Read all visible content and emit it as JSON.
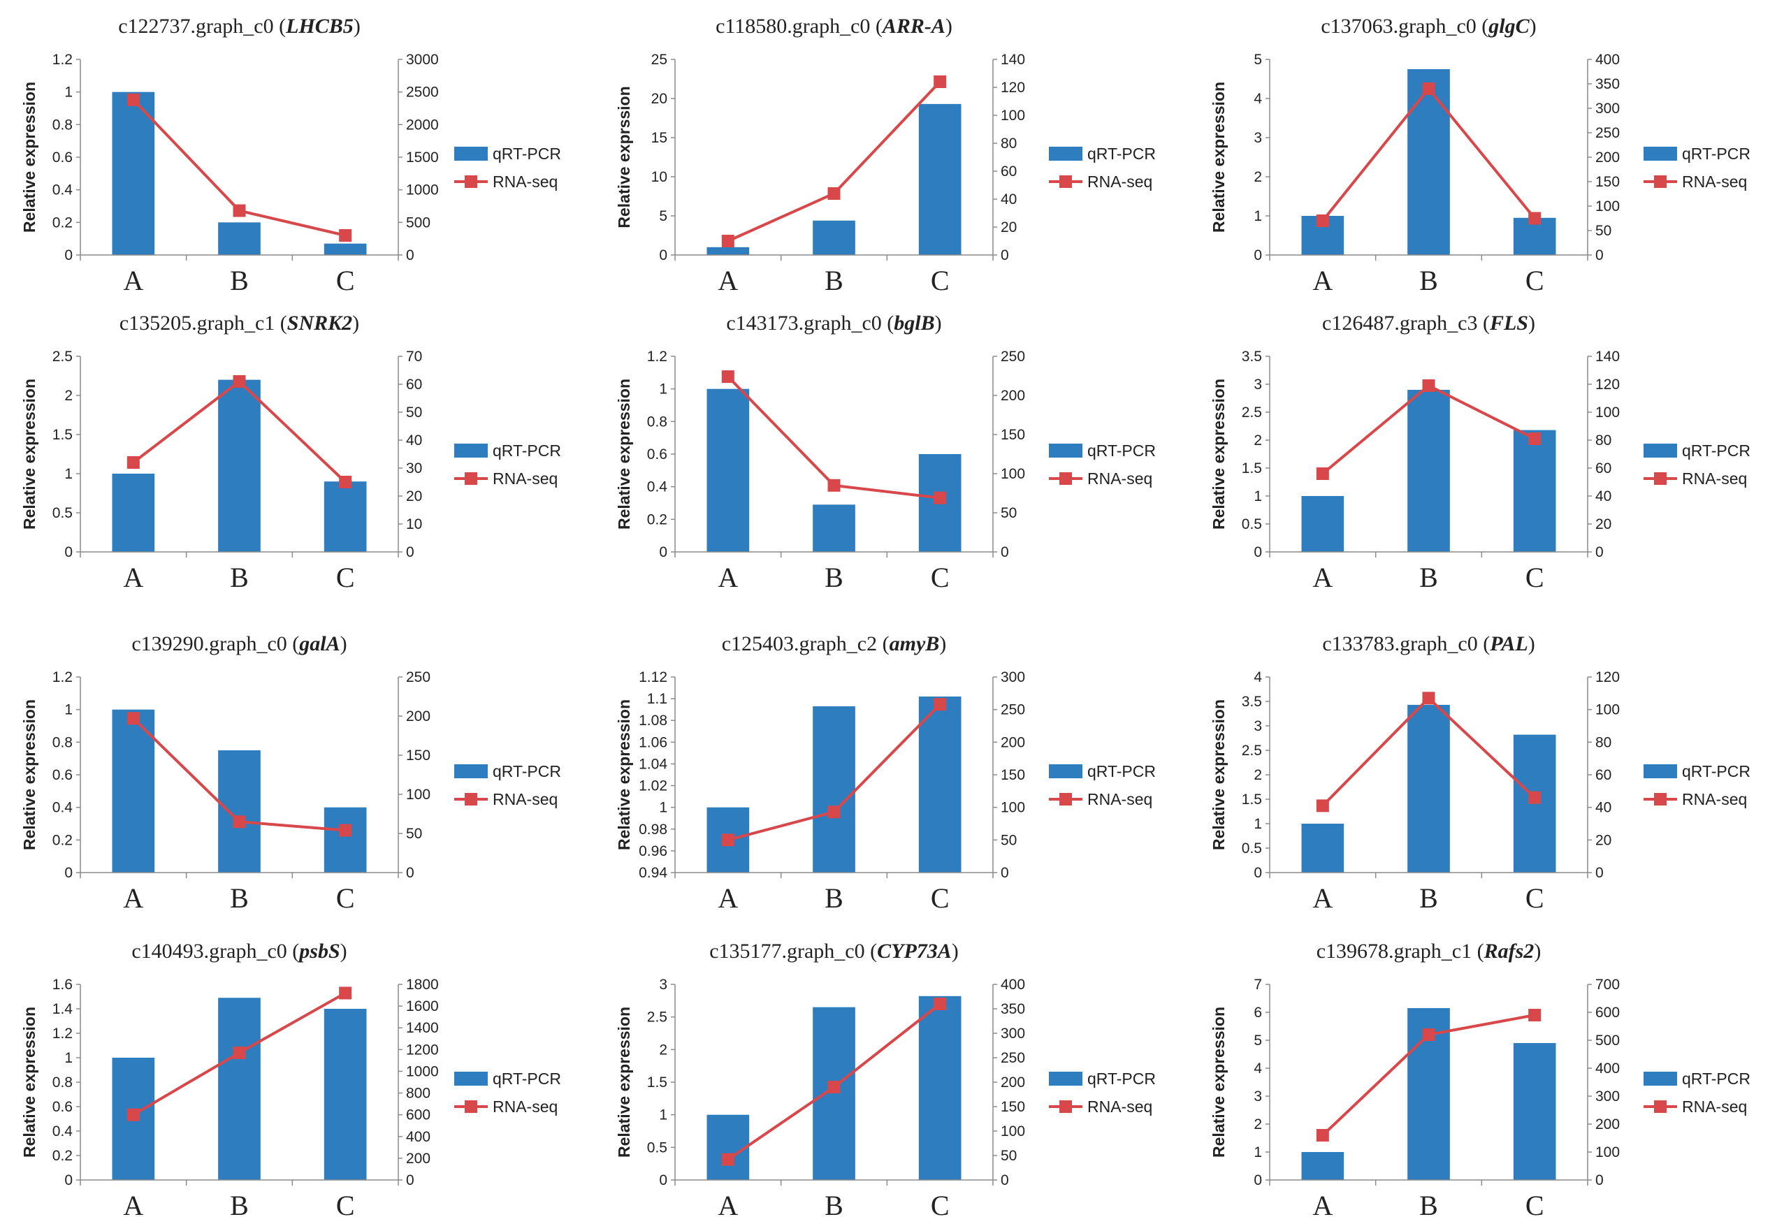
{
  "colors": {
    "bar": "#2e7ebf",
    "line": "#d8474a",
    "axis": "#8a8a8a"
  },
  "chart_data": [
    {
      "type": "bar",
      "title_id": "c122737.graph_c0",
      "title_gene": "LHCB5",
      "ylabel": "Relative expression",
      "categories": [
        "A",
        "B",
        "C"
      ],
      "ylim": [
        0,
        1.2
      ],
      "yticks": [
        "0",
        "0.2",
        "0.4",
        "0.6",
        "0.8",
        "1",
        "1.2"
      ],
      "y2lim": [
        0,
        3000
      ],
      "y2ticks": [
        "0",
        "500",
        "1000",
        "1500",
        "2000",
        "2500",
        "3000"
      ],
      "series": [
        {
          "name": "qRT-PCR",
          "axis": "left",
          "values": [
            1.0,
            0.2,
            0.07
          ]
        },
        {
          "name": "RNA-seq",
          "axis": "right",
          "values": [
            2380,
            680,
            300
          ]
        }
      ]
    },
    {
      "type": "bar",
      "title_id": "c118580.graph_c0",
      "title_gene": "ARR-A",
      "ylabel": "Relative exprssion",
      "categories": [
        "A",
        "B",
        "C"
      ],
      "ylim": [
        0,
        25
      ],
      "yticks": [
        "0",
        "5",
        "10",
        "15",
        "20",
        "25"
      ],
      "y2lim": [
        0,
        140
      ],
      "y2ticks": [
        "0",
        "20",
        "40",
        "60",
        "80",
        "100",
        "120",
        "140"
      ],
      "series": [
        {
          "name": "qRT-PCR",
          "axis": "left",
          "values": [
            1.0,
            4.4,
            19.3
          ]
        },
        {
          "name": "RNA-seq",
          "axis": "right",
          "values": [
            10,
            44,
            124
          ]
        }
      ]
    },
    {
      "type": "bar",
      "title_id": "c137063.graph_c0",
      "title_gene": "glgC",
      "ylabel": "Relative expression",
      "categories": [
        "A",
        "B",
        "C"
      ],
      "ylim": [
        0,
        5
      ],
      "yticks": [
        "0",
        "1",
        "2",
        "3",
        "4",
        "5"
      ],
      "y2lim": [
        0,
        400
      ],
      "y2ticks": [
        "0",
        "50",
        "100",
        "150",
        "200",
        "250",
        "300",
        "350",
        "400"
      ],
      "series": [
        {
          "name": "qRT-PCR",
          "axis": "left",
          "values": [
            1.0,
            4.75,
            0.95
          ]
        },
        {
          "name": "RNA-seq",
          "axis": "right",
          "values": [
            70,
            340,
            75
          ]
        }
      ]
    },
    {
      "type": "bar",
      "title_id": "c135205.graph_c1",
      "title_gene": "SNRK2",
      "ylabel": "Relative expression",
      "categories": [
        "A",
        "B",
        "C"
      ],
      "ylim": [
        0,
        2.5
      ],
      "yticks": [
        "0",
        "0.5",
        "1",
        "1.5",
        "2",
        "2.5"
      ],
      "y2lim": [
        0,
        70
      ],
      "y2ticks": [
        "0",
        "10",
        "20",
        "30",
        "40",
        "50",
        "60",
        "70"
      ],
      "series": [
        {
          "name": "qRT-PCR",
          "axis": "left",
          "values": [
            1.0,
            2.2,
            0.9
          ]
        },
        {
          "name": "RNA-seq",
          "axis": "right",
          "values": [
            32,
            61,
            25
          ]
        }
      ]
    },
    {
      "type": "bar",
      "title_id": "c143173.graph_c0",
      "title_gene": "bglB",
      "ylabel": "Relative expression",
      "categories": [
        "A",
        "B",
        "C"
      ],
      "ylim": [
        0,
        1.2
      ],
      "yticks": [
        "0",
        "0.2",
        "0.4",
        "0.6",
        "0.8",
        "1",
        "1.2"
      ],
      "y2lim": [
        0,
        250
      ],
      "y2ticks": [
        "0",
        "50",
        "100",
        "150",
        "200",
        "250"
      ],
      "series": [
        {
          "name": "qRT-PCR",
          "axis": "left",
          "values": [
            1.0,
            0.29,
            0.6
          ]
        },
        {
          "name": "RNA-seq",
          "axis": "right",
          "values": [
            224,
            85,
            69
          ]
        }
      ]
    },
    {
      "type": "bar",
      "title_id": "c126487.graph_c3",
      "title_gene": "FLS",
      "ylabel": "Relative expression",
      "categories": [
        "A",
        "B",
        "C"
      ],
      "ylim": [
        0,
        3.5
      ],
      "yticks": [
        "0",
        "0.5",
        "1",
        "1.5",
        "2",
        "2.5",
        "3",
        "3.5"
      ],
      "y2lim": [
        0,
        140
      ],
      "y2ticks": [
        "0",
        "20",
        "40",
        "60",
        "80",
        "100",
        "120",
        "140"
      ],
      "series": [
        {
          "name": "qRT-PCR",
          "axis": "left",
          "values": [
            1.0,
            2.9,
            2.18
          ]
        },
        {
          "name": "RNA-seq",
          "axis": "right",
          "values": [
            56,
            119,
            81
          ]
        }
      ]
    },
    {
      "type": "bar",
      "title_id": "c139290.graph_c0",
      "title_gene": "galA",
      "ylabel": "Relative expression",
      "categories": [
        "A",
        "B",
        "C"
      ],
      "ylim": [
        0,
        1.2
      ],
      "yticks": [
        "0",
        "0.2",
        "0.4",
        "0.6",
        "0.8",
        "1",
        "1.2"
      ],
      "y2lim": [
        0,
        250
      ],
      "y2ticks": [
        "0",
        "50",
        "100",
        "150",
        "200",
        "250"
      ],
      "series": [
        {
          "name": "qRT-PCR",
          "axis": "left",
          "values": [
            1.0,
            0.75,
            0.4
          ]
        },
        {
          "name": "RNA-seq",
          "axis": "right",
          "values": [
            197,
            65,
            54
          ]
        }
      ]
    },
    {
      "type": "bar",
      "title_id": "c125403.graph_c2",
      "title_gene": "amyB",
      "ylabel": "Relative expression",
      "categories": [
        "A",
        "B",
        "C"
      ],
      "ylim": [
        0.94,
        1.12
      ],
      "yticks": [
        "0.94",
        "0.96",
        "0.98",
        "1",
        "1.02",
        "1.04",
        "1.06",
        "1.08",
        "1.1",
        "1.12"
      ],
      "y2lim": [
        0,
        300
      ],
      "y2ticks": [
        "0",
        "50",
        "100",
        "150",
        "200",
        "250",
        "300"
      ],
      "series": [
        {
          "name": "qRT-PCR",
          "axis": "left",
          "values": [
            1.0,
            1.093,
            1.102
          ]
        },
        {
          "name": "RNA-seq",
          "axis": "right",
          "values": [
            50,
            93,
            258
          ]
        }
      ]
    },
    {
      "type": "bar",
      "title_id": "c133783.graph_c0",
      "title_gene": "PAL",
      "ylabel": "Relative expression",
      "categories": [
        "A",
        "B",
        "C"
      ],
      "ylim": [
        0,
        4
      ],
      "yticks": [
        "0",
        "0.5",
        "1",
        "1.5",
        "2",
        "2.5",
        "3",
        "3.5",
        "4"
      ],
      "y2lim": [
        0,
        120
      ],
      "y2ticks": [
        "0",
        "20",
        "40",
        "60",
        "80",
        "100",
        "120"
      ],
      "series": [
        {
          "name": "qRT-PCR",
          "axis": "left",
          "values": [
            1.0,
            3.43,
            2.82
          ]
        },
        {
          "name": "RNA-seq",
          "axis": "right",
          "values": [
            41,
            107,
            46
          ]
        }
      ]
    },
    {
      "type": "bar",
      "title_id": "c140493.graph_c0",
      "title_gene": "psbS",
      "ylabel": "Relative expression",
      "categories": [
        "A",
        "B",
        "C"
      ],
      "ylim": [
        0,
        1.6
      ],
      "yticks": [
        "0",
        "0.2",
        "0.4",
        "0.6",
        "0.8",
        "1",
        "1.2",
        "1.4",
        "1.6"
      ],
      "y2lim": [
        0,
        1800
      ],
      "y2ticks": [
        "0",
        "200",
        "400",
        "600",
        "800",
        "1000",
        "1200",
        "1400",
        "1600",
        "1800"
      ],
      "series": [
        {
          "name": "qRT-PCR",
          "axis": "left",
          "values": [
            1.0,
            1.49,
            1.4
          ]
        },
        {
          "name": "RNA-seq",
          "axis": "right",
          "values": [
            600,
            1170,
            1720
          ]
        }
      ]
    },
    {
      "type": "bar",
      "title_id": "c135177.graph_c0",
      "title_gene": "CYP73A",
      "ylabel": "Relative expression",
      "categories": [
        "A",
        "B",
        "C"
      ],
      "ylim": [
        0,
        3
      ],
      "yticks": [
        "0",
        "0.5",
        "1",
        "1.5",
        "2",
        "2.5",
        "3"
      ],
      "y2lim": [
        0,
        400
      ],
      "y2ticks": [
        "0",
        "50",
        "100",
        "150",
        "200",
        "250",
        "300",
        "350",
        "400"
      ],
      "series": [
        {
          "name": "qRT-PCR",
          "axis": "left",
          "values": [
            1.0,
            2.65,
            2.82
          ]
        },
        {
          "name": "RNA-seq",
          "axis": "right",
          "values": [
            42,
            190,
            360
          ]
        }
      ]
    },
    {
      "type": "bar",
      "title_id": "c139678.graph_c1",
      "title_gene": "Rafs2",
      "ylabel": "Relative expression",
      "categories": [
        "A",
        "B",
        "C"
      ],
      "ylim": [
        0,
        7
      ],
      "yticks": [
        "0",
        "1",
        "2",
        "3",
        "4",
        "5",
        "6",
        "7"
      ],
      "y2lim": [
        0,
        700
      ],
      "y2ticks": [
        "0",
        "100",
        "200",
        "300",
        "400",
        "500",
        "600",
        "700"
      ],
      "series": [
        {
          "name": "qRT-PCR",
          "axis": "left",
          "values": [
            1.0,
            6.15,
            4.9
          ]
        },
        {
          "name": "RNA-seq",
          "axis": "right",
          "values": [
            160,
            520,
            590
          ]
        }
      ]
    }
  ]
}
